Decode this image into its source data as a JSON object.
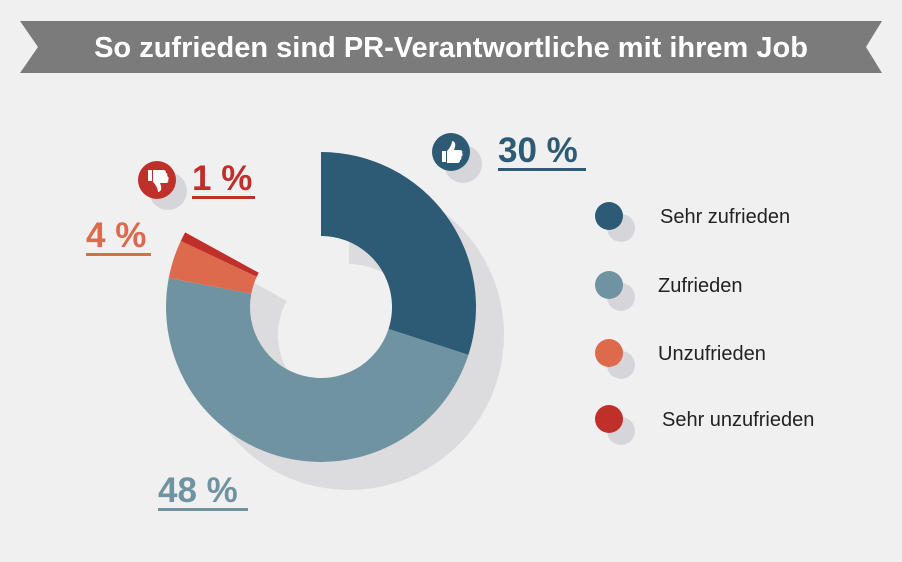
{
  "chart_data": {
    "type": "pie",
    "title": "So zufrieden sind PR-Verantwortliche mit ihrem Job",
    "categories": [
      "Sehr zufrieden",
      "Zufrieden",
      "Unzufrieden",
      "Sehr unzufrieden"
    ],
    "values": [
      30,
      48,
      4,
      1
    ],
    "value_labels": [
      "30 %",
      "48 %",
      "4 %",
      "1 %"
    ],
    "colors": [
      "#2d5a74",
      "#6f93a1",
      "#dd6a4d",
      "#c0302a"
    ],
    "donut": true,
    "legend_position": "right",
    "units": "%"
  },
  "icons": {
    "positive": "thumbs-up-icon",
    "negative": "thumbs-down-icon"
  }
}
